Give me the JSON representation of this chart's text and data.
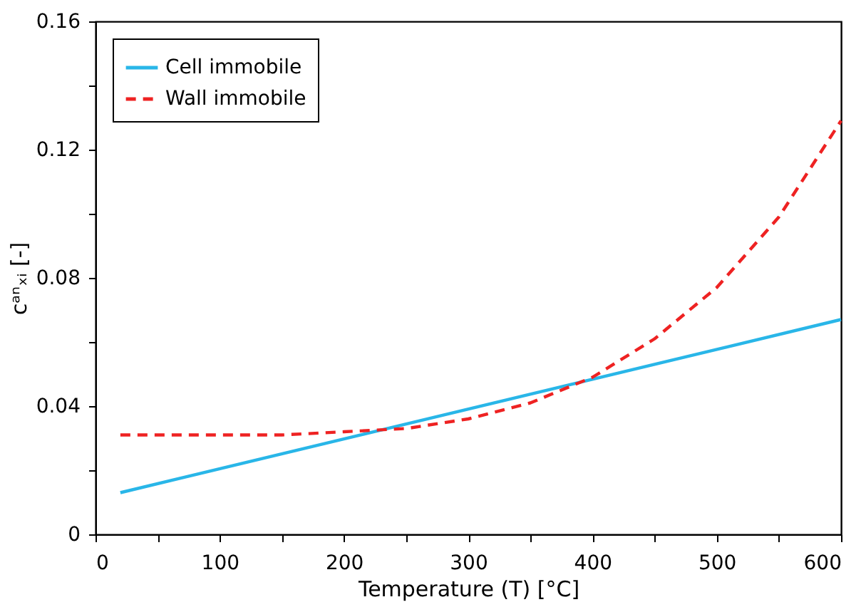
{
  "chart_data": {
    "type": "line",
    "xlabel": "Temperature (T) [°C]",
    "ylabel": "cᵃⁿₓᵢ [-]",
    "series": [
      {
        "name": "Cell immobile",
        "color": "#29b6e8",
        "line_style": "solid",
        "x": [
          20,
          600
        ],
        "values": [
          0.013,
          0.067
        ]
      },
      {
        "name": "Wall immobile",
        "color": "#ee2222",
        "line_style": "dashed",
        "x": [
          20,
          100,
          150,
          200,
          250,
          300,
          350,
          400,
          450,
          500,
          550,
          600
        ],
        "values": [
          0.031,
          0.031,
          0.031,
          0.032,
          0.033,
          0.036,
          0.041,
          0.049,
          0.061,
          0.077,
          0.099,
          0.129
        ]
      }
    ],
    "xlim": [
      0,
      600
    ],
    "ylim": [
      0,
      0.16
    ],
    "xticks": [
      0,
      {
        "value": 50,
        "label": null
      },
      100,
      {
        "value": 150,
        "label": null
      },
      200,
      {
        "value": 250,
        "label": null
      },
      300,
      {
        "value": 350,
        "label": null
      },
      400,
      {
        "value": 450,
        "label": null
      },
      500,
      {
        "value": 550,
        "label": null
      },
      600
    ],
    "yticks": [
      0,
      {
        "value": 0.02,
        "label": null
      },
      0.04,
      {
        "value": 0.06,
        "label": null
      },
      0.08,
      {
        "value": 0.1,
        "label": null
      },
      0.12,
      {
        "value": 0.14,
        "label": null
      },
      0.16
    ],
    "grid": false,
    "legend": "top left",
    "marker": "none"
  }
}
